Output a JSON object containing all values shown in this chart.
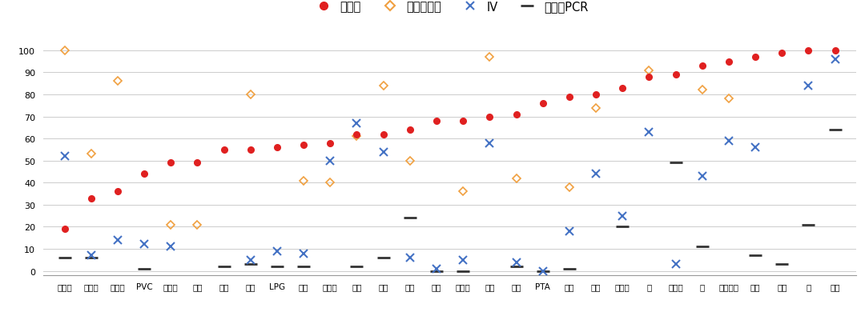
{
  "categories": [
    "工业硅",
    "聚丙烯",
    "碳酸锂",
    "PVC",
    "螺纹钢",
    "玉米",
    "尿素",
    "棉花",
    "LPG",
    "菜油",
    "乙二醇",
    "豆油",
    "菜粕",
    "纯碱",
    "甲醇",
    "棕榈油",
    "豆粕",
    "塑料",
    "PTA",
    "原油",
    "白糖",
    "铁矿石",
    "锌",
    "苯乙烯",
    "铝",
    "合成橡胶",
    "橡胶",
    "黄金",
    "铜",
    "白银"
  ],
  "close_price": [
    19,
    33,
    36,
    44,
    49,
    49,
    55,
    55,
    56,
    57,
    58,
    62,
    62,
    64,
    68,
    68,
    70,
    71,
    76,
    79,
    80,
    83,
    88,
    89,
    93,
    95,
    97,
    99,
    100,
    100
  ],
  "option_volume": [
    100,
    53,
    86,
    null,
    21,
    21,
    null,
    80,
    null,
    41,
    40,
    61,
    84,
    50,
    null,
    36,
    97,
    42,
    null,
    38,
    74,
    null,
    91,
    null,
    82,
    78,
    null,
    null,
    null,
    null
  ],
  "iv": [
    52,
    7,
    14,
    12,
    11,
    null,
    null,
    5,
    9,
    8,
    50,
    67,
    54,
    6,
    1,
    5,
    58,
    4,
    0,
    18,
    44,
    25,
    63,
    3,
    43,
    59,
    56,
    null,
    84,
    96
  ],
  "volume_pcr": [
    6,
    6,
    null,
    1,
    null,
    null,
    2,
    3,
    2,
    2,
    null,
    2,
    6,
    24,
    0,
    0,
    null,
    2,
    0,
    1,
    null,
    20,
    null,
    49,
    11,
    null,
    7,
    3,
    21,
    64
  ],
  "colors": {
    "close_price": "#e02020",
    "option_volume": "#f0a040",
    "iv": "#4472c4",
    "volume_pcr": "#333333",
    "background": "#ffffff",
    "grid": "#cccccc"
  },
  "ylim": [
    -2,
    104
  ],
  "yticks": [
    0,
    10,
    20,
    30,
    40,
    50,
    60,
    70,
    80,
    90,
    100
  ],
  "legend": {
    "close_price": "收盘价",
    "option_volume": "期权成交量",
    "iv": "IV",
    "volume_pcr": "成交量PCR"
  },
  "figsize": [
    10.8,
    4.06
  ],
  "dpi": 100
}
